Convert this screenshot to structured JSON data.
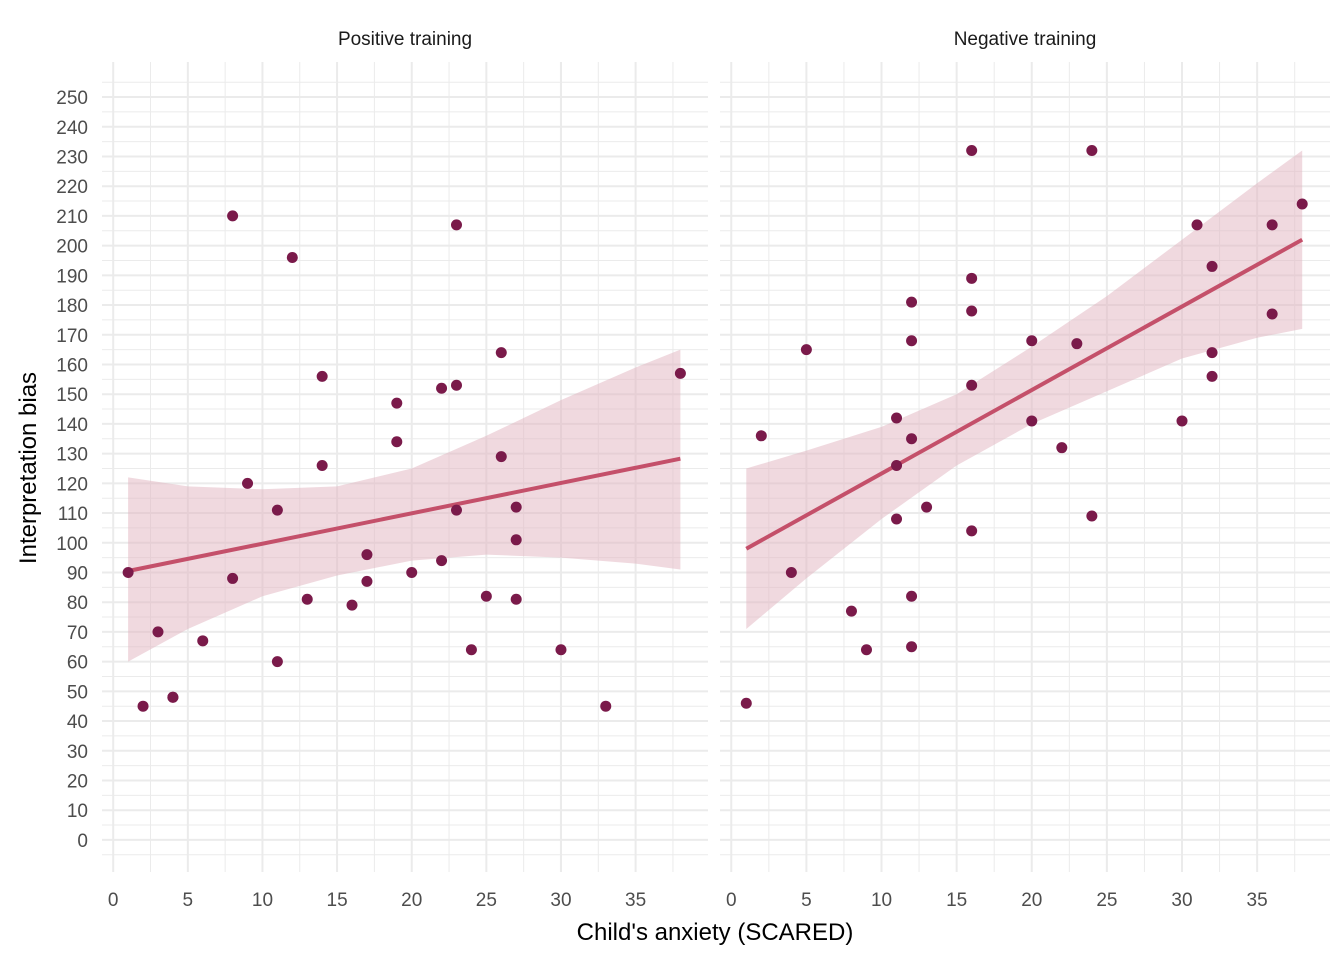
{
  "chart_data": {
    "type": "scatter",
    "xlabel": "Child's anxiety (SCARED)",
    "ylabel": "Interpretation bias",
    "xlim": [
      -0.75,
      39.85
    ],
    "ylim": [
      -10.8,
      261.8
    ],
    "yticks": [
      0,
      10,
      20,
      30,
      40,
      50,
      60,
      70,
      80,
      90,
      100,
      110,
      120,
      130,
      140,
      150,
      160,
      170,
      180,
      190,
      200,
      210,
      220,
      230,
      240,
      250
    ],
    "xticks": [
      0,
      5,
      10,
      15,
      20,
      25,
      30,
      35
    ],
    "grid": true,
    "colors": {
      "point": "#7a1a4a",
      "line": "#c4506a",
      "ribbon": "#e2b4bf",
      "grid": "#ebebeb",
      "text": "#4d4d4d"
    },
    "panels": [
      {
        "title": "Positive training",
        "points": [
          [
            1,
            90
          ],
          [
            2,
            45
          ],
          [
            3,
            70
          ],
          [
            4,
            48
          ],
          [
            4,
            48
          ],
          [
            6,
            67
          ],
          [
            8,
            210
          ],
          [
            8,
            88
          ],
          [
            9,
            120
          ],
          [
            11,
            111
          ],
          [
            11,
            60
          ],
          [
            12,
            196
          ],
          [
            13,
            81
          ],
          [
            14,
            156
          ],
          [
            14,
            126
          ],
          [
            16,
            79
          ],
          [
            17,
            96
          ],
          [
            17,
            87
          ],
          [
            19,
            147
          ],
          [
            19,
            134
          ],
          [
            20,
            90
          ],
          [
            22,
            152
          ],
          [
            22,
            94
          ],
          [
            23,
            153
          ],
          [
            23,
            207
          ],
          [
            23,
            111
          ],
          [
            24,
            64
          ],
          [
            25,
            82
          ],
          [
            26,
            164
          ],
          [
            26,
            129
          ],
          [
            27,
            112
          ],
          [
            27,
            101
          ],
          [
            27,
            81
          ],
          [
            30,
            64
          ],
          [
            33,
            45
          ],
          [
            38,
            157
          ]
        ],
        "fit": [
          [
            1,
            90.5
          ],
          [
            38,
            128.3
          ]
        ],
        "ribbon": [
          [
            1,
            60,
            122
          ],
          [
            5,
            71,
            119
          ],
          [
            10,
            82,
            118
          ],
          [
            15,
            89,
            119
          ],
          [
            20,
            94,
            125
          ],
          [
            25,
            96,
            136
          ],
          [
            30,
            95,
            148
          ],
          [
            35,
            93,
            159
          ],
          [
            38,
            91,
            165
          ]
        ]
      },
      {
        "title": "Negative training",
        "points": [
          [
            1,
            46
          ],
          [
            2,
            136
          ],
          [
            4,
            90
          ],
          [
            5,
            165
          ],
          [
            8,
            77
          ],
          [
            9,
            64
          ],
          [
            11,
            142
          ],
          [
            11,
            126
          ],
          [
            11,
            108
          ],
          [
            12,
            181
          ],
          [
            12,
            168
          ],
          [
            12,
            135
          ],
          [
            12,
            82
          ],
          [
            12,
            65
          ],
          [
            13,
            112
          ],
          [
            16,
            232
          ],
          [
            16,
            189
          ],
          [
            16,
            178
          ],
          [
            16,
            153
          ],
          [
            16,
            104
          ],
          [
            20,
            168
          ],
          [
            20,
            141
          ],
          [
            22,
            132
          ],
          [
            23,
            167
          ],
          [
            24,
            232
          ],
          [
            24,
            109
          ],
          [
            30,
            141
          ],
          [
            31,
            207
          ],
          [
            32,
            193
          ],
          [
            32,
            164
          ],
          [
            32,
            156
          ],
          [
            36,
            207
          ],
          [
            36,
            177
          ],
          [
            38,
            214
          ]
        ],
        "fit": [
          [
            1,
            98
          ],
          [
            38,
            202
          ]
        ],
        "ribbon": [
          [
            1,
            71,
            125
          ],
          [
            5,
            88,
            131
          ],
          [
            10,
            108,
            139
          ],
          [
            15,
            126,
            150
          ],
          [
            20,
            140,
            166
          ],
          [
            25,
            151,
            183
          ],
          [
            30,
            162,
            202
          ],
          [
            35,
            169,
            221
          ],
          [
            38,
            172,
            232
          ]
        ]
      }
    ]
  }
}
